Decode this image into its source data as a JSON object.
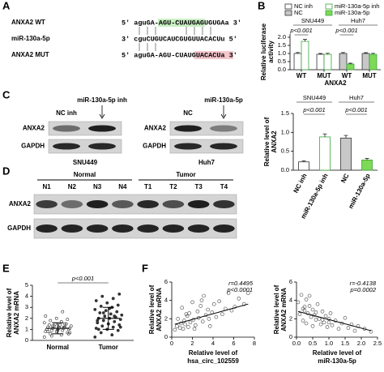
{
  "panels": {
    "A": {
      "label": "A",
      "rows": [
        {
          "name": "ANXA2 WT",
          "seq": "5' aguGA-AGU-CUAUGAGUGUGAa 3'"
        },
        {
          "name": "miR-130a-5p",
          "seq": "3' cguCUGUCAUCGUGUUACACUu 5'"
        },
        {
          "name": "ANXA2 MUT",
          "seq": "5' aguGA-AGU-CUAUGUACACUa 3'"
        }
      ]
    },
    "C": {
      "label": "C",
      "blots": [
        {
          "lanes": [
            "NC inh",
            "miR-130a-5p inh"
          ],
          "rows": [
            "ANXA2",
            "GAPDH"
          ],
          "cell": "SNU449"
        },
        {
          "lanes": [
            "NC",
            "miR-130a-5p"
          ],
          "rows": [
            "ANXA2",
            "GAPDH"
          ],
          "cell": "Huh7"
        }
      ]
    },
    "D": {
      "label": "D",
      "groups": [
        {
          "name": "Normal",
          "lanes": [
            "N1",
            "N2",
            "N3",
            "N4"
          ]
        },
        {
          "name": "Tumor",
          "lanes": [
            "T1",
            "T2",
            "T3",
            "T4"
          ]
        }
      ],
      "rows": [
        "ANXA2",
        "GAPDH"
      ]
    },
    "E": {
      "label": "E"
    },
    "F": {
      "label": "F"
    }
  },
  "chart_data": [
    {
      "type": "grouped_bar",
      "panel": "B",
      "ylabel": [
        "Relative luciferase",
        "activity"
      ],
      "xlabel": "ANXA2",
      "categories": [
        "WT",
        "MUT",
        "WT",
        "MUT"
      ],
      "groups": [
        "SNU449",
        "Huh7"
      ],
      "annotations": [
        "p<0.001",
        "p<0.001"
      ],
      "series": [
        {
          "name": "NC inh",
          "color": "#ffffff",
          "edge": "#333333",
          "values": [
            1.0,
            0.95,
            null,
            null
          ],
          "errors": [
            0.06,
            0.05,
            null,
            null
          ]
        },
        {
          "name": "NC",
          "color": "#c8c8c8",
          "edge": "#333333",
          "values": [
            null,
            null,
            1.0,
            1.0
          ],
          "errors": [
            null,
            null,
            0.06,
            0.05
          ]
        },
        {
          "name": "miR-130a-5p inh",
          "color": "#ffffff",
          "edge": "#3aa63a",
          "values": [
            1.75,
            0.95,
            null,
            null
          ],
          "errors": [
            0.12,
            0.06,
            null,
            null
          ]
        },
        {
          "name": "miR-130a-5p",
          "color": "#7ed957",
          "edge": "#3aa63a",
          "values": [
            null,
            null,
            0.35,
            0.95
          ],
          "errors": [
            null,
            null,
            0.05,
            0.06
          ]
        }
      ],
      "ylim": [
        0,
        2.2
      ],
      "yticks": [
        {
          "value": 0,
          "label": "0.0"
        },
        {
          "value": 0.5,
          "label": "0.5"
        },
        {
          "value": 1,
          "label": "1.0"
        },
        {
          "value": 1.5,
          "label": "1.5"
        },
        {
          "value": 2,
          "label": "2.0"
        }
      ],
      "legend": "top"
    },
    {
      "type": "bar",
      "ylabel": [
        "Relative level of",
        "ANXA2"
      ],
      "categories": [
        "NC inh",
        "miR-130a-5p inh",
        "NC",
        "miR-130a-5p"
      ],
      "groups": [
        "SNU449",
        "Huh7"
      ],
      "annotations": [
        "p<0.001",
        "p<0.001"
      ],
      "values": [
        0.22,
        0.88,
        0.85,
        0.27
      ],
      "errors": [
        0.03,
        0.08,
        0.07,
        0.04
      ],
      "colors": [
        "#ffffff",
        "#ffffff",
        "#c8c8c8",
        "#7ed957"
      ],
      "edges": [
        "#333333",
        "#3aa63a",
        "#333333",
        "#3aa63a"
      ],
      "ylim": [
        0,
        1.5
      ],
      "yticks": [
        {
          "value": 0,
          "label": "0.0"
        },
        {
          "value": 0.5,
          "label": "0.5"
        },
        {
          "value": 1,
          "label": "1.0"
        },
        {
          "value": 1.5,
          "label": "1.5"
        }
      ]
    },
    {
      "type": "strip",
      "ylabel": [
        "Relative level of",
        "ANXA2 mRNA"
      ],
      "categories": [
        "Normal",
        "Tumor"
      ],
      "annotations": [
        "p<0.001"
      ],
      "values": [
        [
          0.3,
          0.5,
          0.6,
          0.7,
          0.8,
          0.8,
          0.9,
          0.9,
          1.0,
          1.0,
          1.0,
          1.1,
          1.1,
          1.1,
          1.2,
          1.2,
          1.2,
          1.3,
          1.3,
          1.4,
          1.4,
          1.5,
          1.5,
          1.6,
          1.7,
          1.8,
          1.9,
          2.0,
          2.2,
          2.6,
          0.4,
          0.6,
          0.9,
          1.0,
          1.2,
          1.3,
          0.7,
          1.1,
          0.8,
          1.5
        ],
        [
          0.3,
          0.5,
          0.7,
          0.9,
          1.0,
          1.1,
          1.2,
          1.3,
          1.4,
          1.5,
          1.6,
          1.7,
          1.8,
          1.9,
          2.0,
          2.0,
          2.1,
          2.2,
          2.3,
          2.4,
          2.5,
          2.6,
          2.7,
          2.8,
          3.0,
          3.1,
          3.2,
          3.4,
          3.6,
          3.8,
          4.0,
          4.2,
          1.5,
          1.8,
          2.2,
          2.5,
          1.2,
          2.9,
          1.0,
          2.1
        ]
      ],
      "means": [
        1.1,
        2.0
      ],
      "sd": [
        0.5,
        1.0
      ],
      "color": "#333333",
      "ylim": [
        0,
        5
      ],
      "yticks": [
        0,
        1,
        2,
        3,
        4,
        5
      ]
    },
    {
      "type": "scatter",
      "ylabel": [
        "Relative level of",
        "ANXA2 mRNA"
      ],
      "xlabel": [
        "Relative level of",
        "hsa_circ_102559"
      ],
      "annotations": [
        "r=0.4495",
        "p<0.0001"
      ],
      "x": [
        0.3,
        0.5,
        0.6,
        0.8,
        0.9,
        1.0,
        1.1,
        1.2,
        1.3,
        1.5,
        1.6,
        1.7,
        1.8,
        2.0,
        2.1,
        2.3,
        2.5,
        2.6,
        2.8,
        3.0,
        3.1,
        3.3,
        3.5,
        3.7,
        3.9,
        4.1,
        4.3,
        4.6,
        4.9,
        5.2,
        5.5,
        5.8,
        6.1,
        6.5,
        7.0,
        7.4,
        1.4,
        2.2,
        2.9,
        3.6
      ],
      "y": [
        0.8,
        1.2,
        2.0,
        1.0,
        1.5,
        3.2,
        0.9,
        1.8,
        1.4,
        2.3,
        1.1,
        2.6,
        1.6,
        3.8,
        1.9,
        1.3,
        2.8,
        2.1,
        3.4,
        1.7,
        4.5,
        2.4,
        3.0,
        1.2,
        2.7,
        3.6,
        2.2,
        3.9,
        2.5,
        3.1,
        4.8,
        2.9,
        3.3,
        4.2,
        3.6,
        4.8,
        2.5,
        0.9,
        4.0,
        2.0
      ],
      "trend": {
        "x": [
          0.3,
          7.4
        ],
        "y": [
          1.4,
          3.6
        ]
      },
      "color": "#444444",
      "xlim": [
        0,
        8
      ],
      "xticks": [
        0,
        2,
        4,
        6,
        8
      ],
      "ylim": [
        0,
        6
      ],
      "yticks": [
        0,
        2,
        4,
        6
      ]
    },
    {
      "type": "scatter",
      "ylabel": [
        "Relative level of",
        "ANXA2 mRNA"
      ],
      "xlabel": [
        "Relative level of",
        "miR-130a-5p"
      ],
      "annotations": [
        "r=-0.4138",
        "p=0.0002"
      ],
      "x": [
        0.05,
        0.1,
        0.15,
        0.2,
        0.2,
        0.25,
        0.3,
        0.3,
        0.35,
        0.4,
        0.45,
        0.5,
        0.5,
        0.55,
        0.6,
        0.65,
        0.7,
        0.75,
        0.8,
        0.85,
        0.9,
        0.95,
        1.0,
        1.05,
        1.1,
        1.2,
        1.3,
        1.4,
        1.5,
        1.6,
        1.7,
        1.8,
        1.9,
        2.1,
        2.3,
        0.4,
        0.6,
        0.8,
        1.0,
        0.25
      ],
      "y": [
        3.8,
        2.5,
        4.6,
        1.8,
        3.1,
        2.9,
        4.1,
        1.5,
        2.6,
        3.4,
        2.2,
        1.2,
        3.0,
        2.4,
        1.9,
        3.6,
        2.0,
        1.4,
        2.8,
        1.6,
        2.3,
        1.1,
        2.0,
        2.6,
        1.3,
        1.8,
        0.9,
        1.5,
        2.1,
        1.0,
        1.4,
        0.7,
        1.2,
        0.9,
        0.6,
        4.5,
        2.7,
        1.9,
        1.6,
        3.3
      ],
      "trend": {
        "x": [
          0.05,
          2.3
        ],
        "y": [
          2.8,
          0.7
        ]
      },
      "color": "#444444",
      "xlim": [
        0,
        2.5
      ],
      "xticks": [
        {
          "value": 0,
          "label": "0.0"
        },
        {
          "value": 0.5,
          "label": "0.5"
        },
        {
          "value": 1,
          "label": "1.0"
        },
        {
          "value": 1.5,
          "label": "1.5"
        },
        {
          "value": 2,
          "label": "2.0"
        },
        {
          "value": 2.5,
          "label": "2.5"
        }
      ],
      "ylim": [
        0,
        6
      ],
      "yticks": [
        0,
        2,
        4,
        6
      ]
    }
  ]
}
